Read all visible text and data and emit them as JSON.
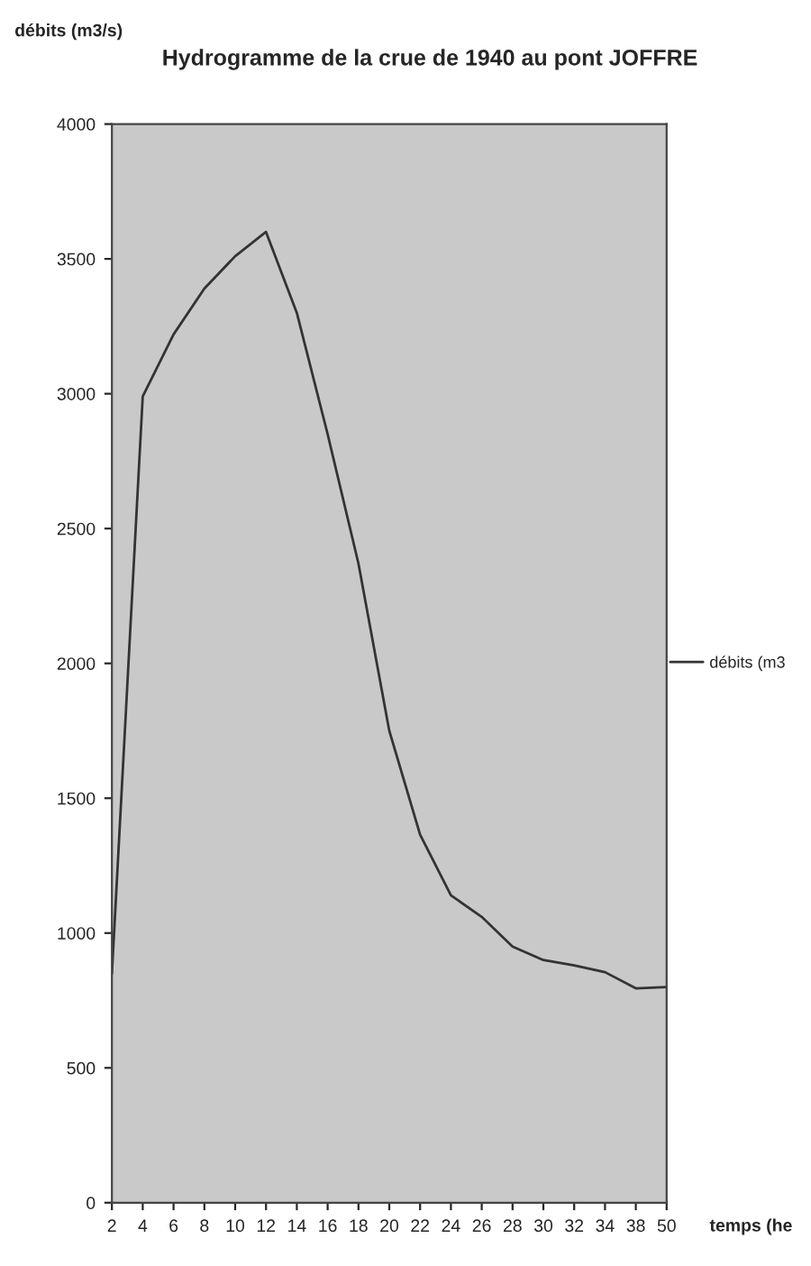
{
  "chart_data": {
    "type": "line",
    "title": "Hydrogramme de la crue de 1940 au pont JOFFRE",
    "ylabel": "débits (m3/s)",
    "xlabel": "temps (he",
    "categories": [
      "2",
      "4",
      "6",
      "8",
      "10",
      "12",
      "14",
      "16",
      "18",
      "20",
      "22",
      "24",
      "26",
      "28",
      "30",
      "32",
      "34",
      "38",
      "50"
    ],
    "series": [
      {
        "name": "débits (m3",
        "color": "#333333",
        "values": [
          850,
          2990,
          3220,
          3390,
          3510,
          3600,
          3300,
          2850,
          2370,
          1750,
          1365,
          1140,
          1060,
          950,
          900,
          880,
          855,
          795,
          800
        ]
      }
    ],
    "ylim": [
      0,
      4000
    ],
    "yticks": [
      0,
      500,
      1000,
      1500,
      2000,
      2500,
      3000,
      3500,
      4000
    ],
    "grid": false,
    "legend": "right",
    "marker": "none",
    "line_style": "solid"
  }
}
